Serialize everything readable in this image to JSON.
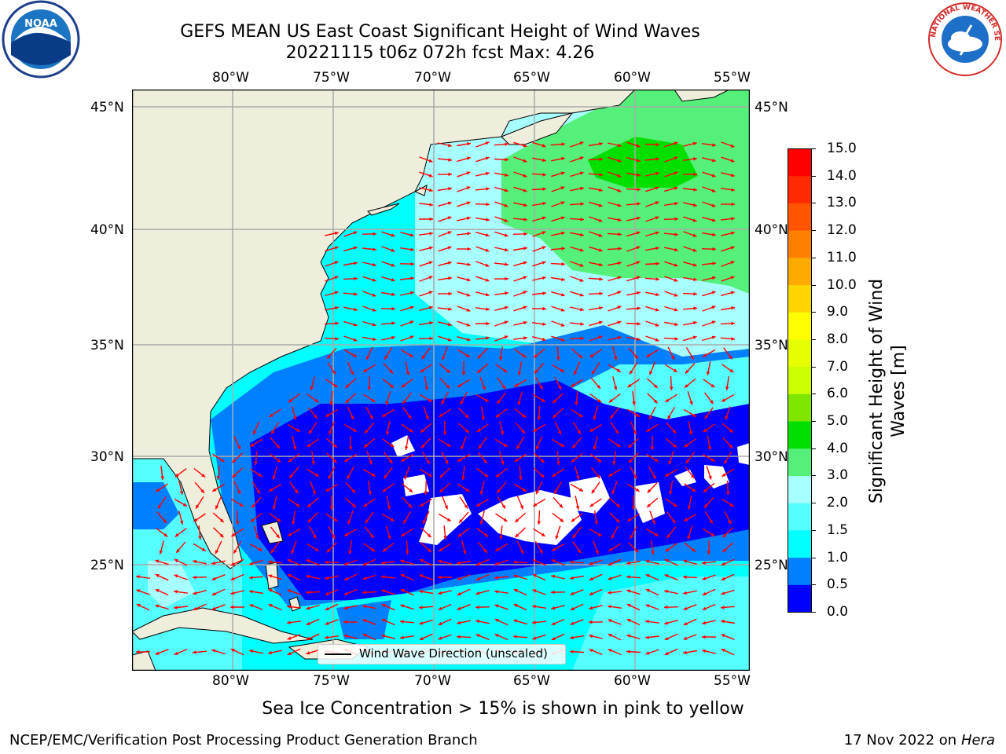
{
  "header": {
    "title_line1": "GEFS MEAN US East Coast Significant Height of Wind Waves",
    "title_line2": "20221115 t06z 072h fcst   Max: 4.26"
  },
  "logos": {
    "noaa_text": "NOAA",
    "nws_text": "NATIONAL WEATHER SERVICE"
  },
  "map": {
    "lon_ticks": [
      "80°W",
      "75°W",
      "70°W",
      "65°W",
      "60°W",
      "55°W"
    ],
    "lat_ticks": [
      "45°N",
      "40°N",
      "35°N",
      "30°N",
      "25°N"
    ],
    "legend_label": "Wind Wave Direction (unscaled)",
    "colors": {
      "land": "#efeedc",
      "arrow": "#ff0000",
      "grid": "#aaaaaa"
    }
  },
  "colorbar": {
    "label": "Significant Height of Wind Waves [m]",
    "label_line1": "Significant Height of Wind",
    "label_line2": "Waves [m]",
    "ticks": [
      "15.0",
      "14.0",
      "13.0",
      "12.0",
      "11.0",
      "10.0",
      "9.0",
      "8.0",
      "7.0",
      "6.0",
      "5.0",
      "4.0",
      "3.0",
      "2.0",
      "1.5",
      "1.0",
      "0.5",
      "0.0"
    ],
    "colors_top_to_bottom": [
      "#ff0000",
      "#ff2a00",
      "#ff5500",
      "#ff8000",
      "#ffaa00",
      "#ffd500",
      "#ffff00",
      "#e5ff00",
      "#ccff00",
      "#7fe600",
      "#00e000",
      "#55f07a",
      "#a8ffff",
      "#55ffff",
      "#00ffff",
      "#0080ff",
      "#0000ff"
    ]
  },
  "footer": {
    "caption": "Sea Ice Concentration > 15% is shown in pink to yellow",
    "credit": "NCEP/EMC/Verification Post Processing Product Generation Branch",
    "date": "17 Nov 2022 on",
    "machine": "Hera"
  }
}
